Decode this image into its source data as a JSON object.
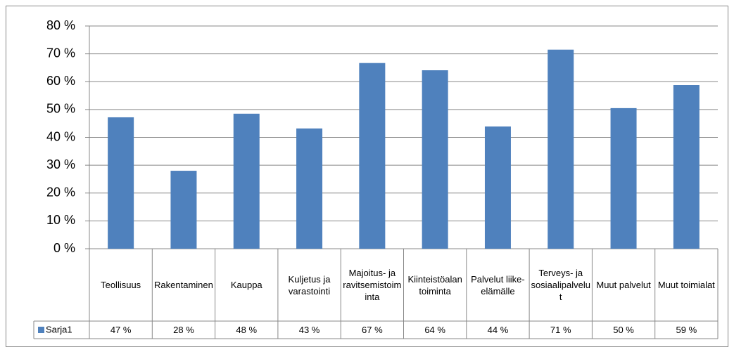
{
  "chart_data": {
    "type": "bar",
    "categories": [
      "Teollisuus",
      "Rakentaminen",
      "Kauppa",
      "Kuljetus ja varastointi",
      "Majoitus- ja ravitsemistoiminta",
      "Kiinteistöalan toiminta",
      "Palvelut liike-elämälle",
      "Terveys- ja sosiaalipalvelut",
      "Muut palvelut",
      "Muut toimialat"
    ],
    "series": [
      {
        "name": "Sarja1",
        "color": "#4f81bd",
        "values": [
          47.2,
          28.0,
          48.5,
          43.2,
          66.7,
          64.1,
          43.9,
          71.5,
          50.5,
          58.8
        ],
        "value_labels": [
          "47 %",
          "28 %",
          "48 %",
          "43 %",
          "67 %",
          "64 %",
          "44 %",
          "71 %",
          "50 %",
          "59 %"
        ]
      }
    ],
    "ylim": [
      0,
      80
    ],
    "yticks": [
      {
        "value": 0,
        "label": "0 %"
      },
      {
        "value": 10,
        "label": "10 %"
      },
      {
        "value": 20,
        "label": "20 %"
      },
      {
        "value": 30,
        "label": "30 %"
      },
      {
        "value": 40,
        "label": "40 %"
      },
      {
        "value": 50,
        "label": "50 %"
      },
      {
        "value": 60,
        "label": "60 %"
      },
      {
        "value": 70,
        "label": "70 %"
      },
      {
        "value": 80,
        "label": "80 %"
      }
    ],
    "grid": true
  }
}
